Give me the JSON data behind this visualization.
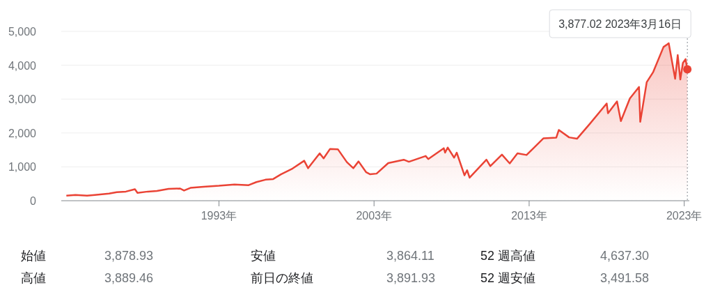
{
  "chart_data": {
    "type": "area",
    "color": "#ea4335",
    "x": [
      "1983-03",
      "1983-10",
      "1984-07",
      "1985-01",
      "1985-12",
      "1986-06",
      "1987-01",
      "1987-08",
      "1987-10",
      "1988-06",
      "1989-01",
      "1989-10",
      "1990-07",
      "1990-10",
      "1991-03",
      "1992-01",
      "1993-01",
      "1994-01",
      "1994-12",
      "1995-06",
      "1996-01",
      "1996-07",
      "1997-01",
      "1997-10",
      "1998-07",
      "1998-10",
      "1999-07",
      "1999-10",
      "2000-03",
      "2000-09",
      "2001-04",
      "2001-09",
      "2002-01",
      "2002-07",
      "2002-10",
      "2003-03",
      "2003-12",
      "2004-12",
      "2005-04",
      "2006-05",
      "2006-07",
      "2007-07",
      "2007-08",
      "2007-10",
      "2008-03",
      "2008-05",
      "2008-11",
      "2009-01",
      "2009-03",
      "2010-04",
      "2010-07",
      "2011-04",
      "2011-10",
      "2012-04",
      "2012-11",
      "2013-12",
      "2014-10",
      "2014-12",
      "2015-08",
      "2016-02",
      "2016-12",
      "2018-01",
      "2018-02",
      "2018-09",
      "2018-12",
      "2019-07",
      "2020-02",
      "2020-03",
      "2020-08",
      "2021-01",
      "2021-09",
      "2021-12",
      "2022-01",
      "2022-06",
      "2022-08",
      "2022-10",
      "2022-12",
      "2023-02",
      "2023-03-09",
      "2023-03-16"
    ],
    "values": [
      150,
      170,
      150,
      170,
      210,
      250,
      270,
      340,
      230,
      270,
      290,
      350,
      360,
      300,
      380,
      410,
      440,
      480,
      460,
      550,
      620,
      640,
      780,
      950,
      1180,
      960,
      1400,
      1250,
      1530,
      1520,
      1140,
      960,
      1160,
      840,
      780,
      800,
      1110,
      1210,
      1150,
      1320,
      1230,
      1550,
      1420,
      1570,
      1270,
      1420,
      750,
      900,
      680,
      1210,
      1020,
      1360,
      1100,
      1400,
      1350,
      1840,
      1860,
      2090,
      1870,
      1830,
      2270,
      2870,
      2580,
      2930,
      2350,
      3020,
      3360,
      2330,
      3500,
      3800,
      4540,
      4620,
      4650,
      3600,
      4300,
      3580,
      4070,
      4180,
      3920,
      3877.02
    ],
    "xlim": [
      "1982-11",
      "2023-05"
    ],
    "xticks": [
      {
        "value": "1993",
        "label": "1993年"
      },
      {
        "value": "2003",
        "label": "2003年"
      },
      {
        "value": "2013",
        "label": "2013年"
      },
      {
        "value": "2023",
        "label": "2023年"
      }
    ],
    "ylim": [
      0,
      5000
    ],
    "yticks": [
      0,
      {
        "value": 1000,
        "label": "1,000"
      },
      {
        "value": 2000,
        "label": "2,000"
      },
      {
        "value": 3000,
        "label": "3,000"
      },
      {
        "value": 4000,
        "label": "4,000"
      },
      {
        "value": 5000,
        "label": "5,000"
      }
    ],
    "grid": "y",
    "ref_lines": [
      {
        "axis": "x",
        "value": "2023-03-16",
        "color": "#9aa0a6",
        "line_style": "dotted"
      }
    ],
    "annotations": [
      "3,877.02  2023年3月16日",
      "始値",
      "3,878.93",
      "安値",
      "3,864.11",
      "52 週高値",
      "4,637.30",
      "高値",
      "3,889.46",
      "前日の終値",
      "3,891.93",
      "52 週安値",
      "3,491.58"
    ]
  }
}
